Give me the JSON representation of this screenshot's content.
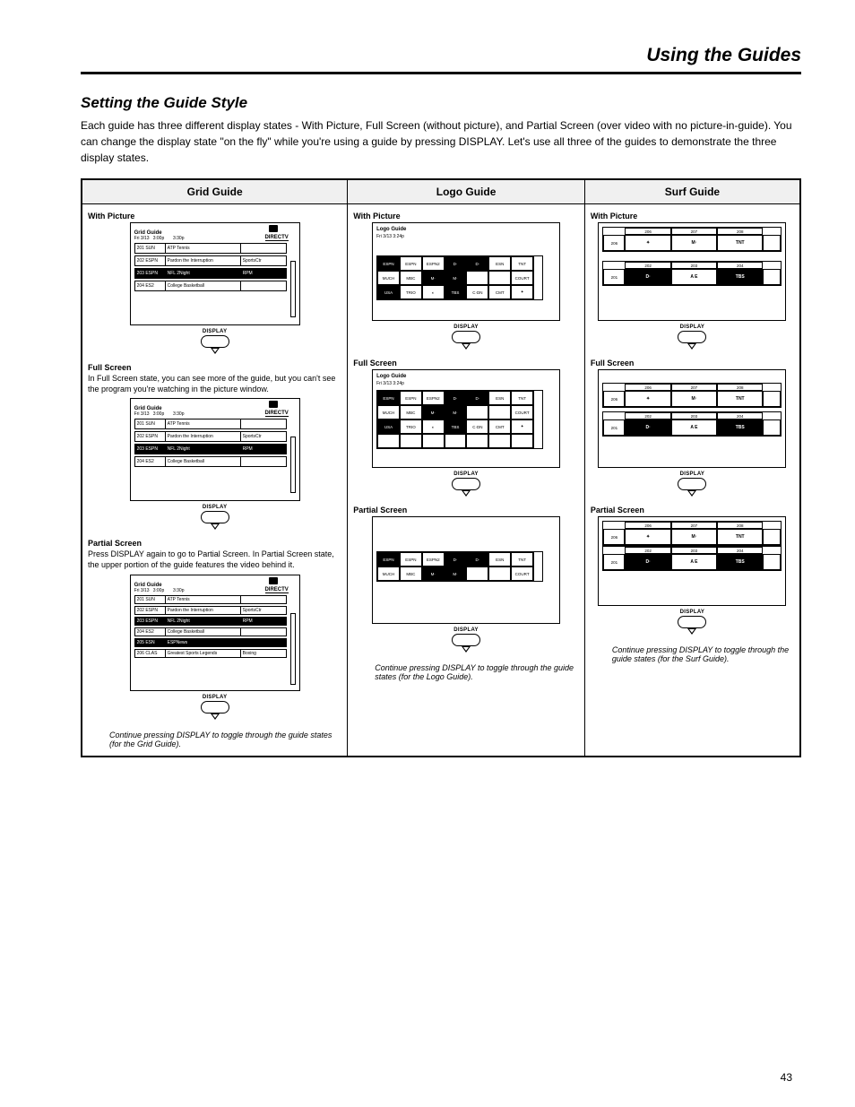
{
  "page": {
    "title": "Using the Guides",
    "section_title": "Setting the Guide Style",
    "intro": "Each guide has three different display states - With Picture, Full Screen (without picture), and Partial Screen (over video with no picture-in-guide). You can change the display state \"on the fly\" while you're using a guide by pressing DISPLAY. Let's use all three of the guides to demonstrate the three display states.",
    "page_number": "43"
  },
  "table": {
    "headers": [
      "Grid Guide",
      "Logo Guide",
      "Surf Guide"
    ],
    "col1": {
      "ui": {
        "title": "Grid Guide",
        "subtitle_left": "Fri 3/13",
        "cols": [
          "3:00p",
          "3:30p"
        ],
        "rows": [
          {
            "ch": "201 SUN",
            "a": "ATP Tennis",
            "b": "",
            "dark": false
          },
          {
            "ch": "202 ESPN",
            "a": "Pardon the Interruption",
            "b": "SportsCtr",
            "dark": false
          },
          {
            "ch": "203 ESPN",
            "a": "NFL 2Night",
            "b": "RPM",
            "dark": true
          },
          {
            "ch": "204 ES2",
            "a": "College Basketball",
            "b": "",
            "dark": false
          }
        ],
        "rows_ext": [
          {
            "ch": "205 ESN",
            "a": "ESPNews",
            "b": "",
            "dark": false
          },
          {
            "ch": "206 CLAS",
            "a": "Greatest Sports Legends",
            "b": "Boxing",
            "dark": false
          }
        ],
        "logo_text": "DIRECTV"
      },
      "states": [
        {
          "label": "With Picture",
          "desc": ""
        },
        {
          "label": "Full Screen",
          "desc": "In Full Screen state, you can see more of the guide, but you can't see the program you're watching in the picture window."
        },
        {
          "label": "Partial Screen",
          "desc": "Press DISPLAY again to go to Partial Screen. In Partial Screen state, the upper portion of the guide features the video behind it."
        }
      ],
      "continue": "Continue pressing DISPLAY to toggle through the guide states (for the Grid Guide)."
    },
    "col2": {
      "ui": {
        "title": "Logo Guide",
        "subtitle": "Fri 3/13  3:24p",
        "grid": [
          [
            {
              "t": "ESPN",
              "inv": true
            },
            {
              "t": "ESPN"
            },
            {
              "t": "ESPN2"
            },
            {
              "t": "D·",
              "inv": true
            },
            {
              "t": "D·",
              "inv": true
            },
            {
              "t": "ESN"
            },
            {
              "t": "TNT"
            }
          ],
          [
            {
              "t": "MUCH"
            },
            {
              "t": "MBC"
            },
            {
              "t": "M·",
              "inv": true
            },
            {
              "t": "M·",
              "inv": true
            },
            {
              "t": ""
            },
            {
              "t": ""
            },
            {
              "t": "COURT"
            }
          ],
          [
            {
              "t": "USA",
              "inv": true
            },
            {
              "t": "TRIO"
            },
            {
              "t": "◐"
            },
            {
              "t": "TBS",
              "inv": true
            },
            {
              "t": "C·DN"
            },
            {
              "t": "CMT"
            },
            {
              "t": "✦"
            }
          ],
          [
            {
              "t": ""
            },
            {
              "t": ""
            },
            {
              "t": ""
            },
            {
              "t": ""
            },
            {
              "t": ""
            },
            {
              "t": ""
            },
            {
              "t": ""
            }
          ]
        ]
      },
      "states": [
        {
          "label": "With Picture",
          "desc": "",
          "rows": 3
        },
        {
          "label": "Full Screen",
          "desc": "",
          "rows": 4
        },
        {
          "label": "Partial Screen",
          "desc": "",
          "rows": 2
        }
      ],
      "continue": "Continue pressing DISPLAY to toggle through the guide states (for the Logo Guide)."
    },
    "col3": {
      "ui": {
        "row_top": [
          {
            "t": "206",
            "lab": true
          },
          {
            "t": "✦"
          },
          {
            "t": "M·"
          },
          {
            "t": "TNT"
          },
          {
            "t": ""
          }
        ],
        "row_bottom": [
          {
            "t": "201",
            "lab": true
          },
          {
            "t": "D·",
            "inv": true
          },
          {
            "t": "A E"
          },
          {
            "t": "TBS",
            "inv": true
          },
          {
            "t": ""
          }
        ],
        "row_top_labels": [
          "",
          "206",
          "207",
          "208",
          ""
        ],
        "row_bottom_labels": [
          "",
          "202",
          "203",
          "204",
          ""
        ]
      },
      "states": [
        {
          "label": "With Picture",
          "desc": "",
          "spaced": true
        },
        {
          "label": "Full Screen",
          "desc": "",
          "spaced": false
        },
        {
          "label": "Partial Screen",
          "desc": "",
          "single": true
        }
      ],
      "continue": "Continue pressing DISPLAY to toggle through the guide states (for the Surf Guide)."
    }
  },
  "button_label": "DISPLAY",
  "style": {
    "page_bg": "#ffffff",
    "text_color": "#000000",
    "border_color": "#000000",
    "header_bg": "#f0f0f0",
    "title_fontsize": 21,
    "section_fontsize": 17,
    "body_fontsize": 12,
    "small_fontsize": 9
  }
}
